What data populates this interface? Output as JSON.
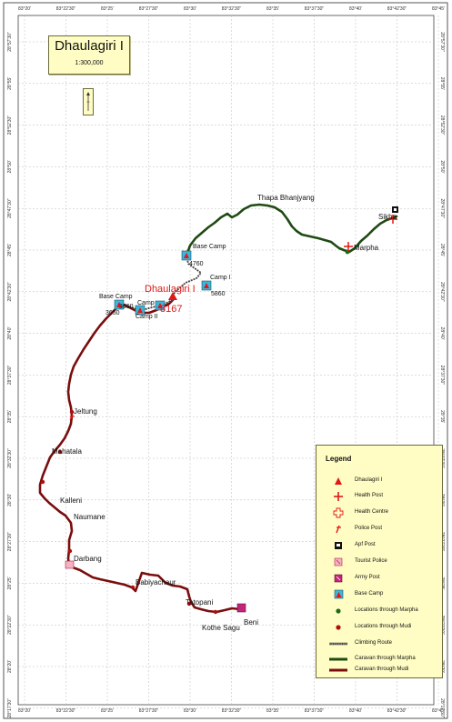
{
  "map": {
    "title": "Dhaulagiri I",
    "scale": "1:300,000",
    "colors": {
      "caravan_marpha": "#1f4a13",
      "caravan_mudi": "#7a0d0d",
      "climbing_route": "#444444",
      "grid": "#b9b9b9",
      "legend_bg": "#fffdc4",
      "peak": "#e01818",
      "base_camp": "#3fb4d8"
    }
  },
  "axes": {
    "lon_labels": [
      "83°20'",
      "83°22'30\"",
      "83°25'",
      "83°27'30\"",
      "83°30'",
      "83°32'30\"",
      "83°35'",
      "83°37'30\"",
      "83°40'",
      "83°42'30\"",
      "83°45'"
    ],
    "lat_labels": [
      "28°57'30\"",
      "28°55'",
      "28°52'30\"",
      "28°50'",
      "28°47'30\"",
      "28°45'",
      "28°42'30\"",
      "28°40'",
      "28°37'30\"",
      "28°35'",
      "28°32'30\"",
      "28°30'",
      "28°27'30\"",
      "28°25'",
      "28°22'30\"",
      "28°20'",
      "28°17'30\""
    ]
  },
  "places": {
    "thapa_bhanjyang": "Thapa Bhanjyang",
    "sikha": "Sikha",
    "marpha": "Marpha",
    "base_camp_east": "Base Camp",
    "alt_4760": "4760",
    "camp_i": "Camp I",
    "alt_5860": "5860",
    "peak_name": "Dhaulagiri I",
    "peak_alt": "8167",
    "base_camp_west": "Base Camp",
    "alt_3660": "3660",
    "alt_3650": "3650",
    "camp_label": "Camp",
    "camp_ii": "Camp II",
    "jeltung": "Jeltung",
    "mahatala": "Mahatala",
    "kalleni": "Kalleni",
    "naumane": "Naumane",
    "darbang": "Darbang",
    "babiyachaur": "Babiyachaur",
    "tatopani": "Tatopani",
    "kothe_sagu": "Kothe Sagu",
    "beni": "Beni"
  },
  "legend": {
    "title": "Legend",
    "items": [
      {
        "label": "Dhaulagiri I",
        "icon": "peak-triangle-icon"
      },
      {
        "label": "Health Post",
        "icon": "health-post-cross-icon"
      },
      {
        "label": "Health Centre",
        "icon": "health-centre-cross-icon"
      },
      {
        "label": "Police Post",
        "icon": "police-post-icon"
      },
      {
        "label": "Apf Post",
        "icon": "apf-post-icon"
      },
      {
        "label": "Tourist Police",
        "icon": "tourist-police-icon"
      },
      {
        "label": "Army Post",
        "icon": "army-post-icon"
      },
      {
        "label": "Base Camp",
        "icon": "base-camp-icon"
      },
      {
        "label": "Locations through Marpha",
        "icon": "green-dot-icon"
      },
      {
        "label": "Locations through Mudi",
        "icon": "red-dot-icon"
      },
      {
        "label": "Climbing Route",
        "icon": "climbing-route-line-icon"
      },
      {
        "label": "Caravan through Marpha",
        "icon": "green-line-icon"
      },
      {
        "label": "Caravan through Mudi",
        "icon": "red-line-icon"
      }
    ]
  }
}
